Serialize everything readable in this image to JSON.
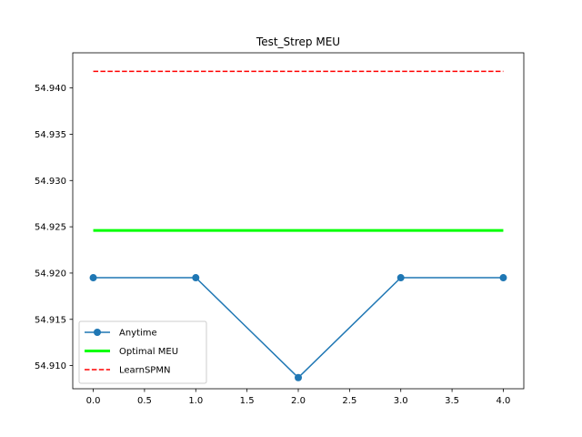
{
  "chart_data": {
    "type": "line",
    "title": "Test_Strep MEU",
    "xlabel": "",
    "ylabel": "",
    "xlim": [
      -0.2,
      4.2
    ],
    "ylim": [
      54.9075,
      54.9438
    ],
    "x_ticks": [
      0.0,
      0.5,
      1.0,
      1.5,
      2.0,
      2.5,
      3.0,
      3.5,
      4.0
    ],
    "x_tick_labels": [
      "0.0",
      "0.5",
      "1.0",
      "1.5",
      "2.0",
      "2.5",
      "3.0",
      "3.5",
      "4.0"
    ],
    "y_ticks": [
      54.91,
      54.915,
      54.92,
      54.925,
      54.93,
      54.935,
      54.94
    ],
    "y_tick_labels": [
      "54.910",
      "54.915",
      "54.920",
      "54.925",
      "54.930",
      "54.935",
      "54.940"
    ],
    "grid": false,
    "legend_position": "lower-left",
    "series": [
      {
        "name": "Anytime",
        "style": "line-marker",
        "color": "#1f77b4",
        "x": [
          0,
          1,
          2,
          3,
          4
        ],
        "y": [
          54.9195,
          54.9195,
          54.9087,
          54.9195,
          54.9195
        ]
      },
      {
        "name": "Optimal MEU",
        "style": "solid-thick",
        "color": "#00ff00",
        "x": [
          0,
          4
        ],
        "y": [
          54.9246,
          54.9246
        ]
      },
      {
        "name": "LearnSPMN",
        "style": "dashed",
        "color": "#ff0000",
        "x": [
          0,
          4
        ],
        "y": [
          54.9418,
          54.9418
        ]
      }
    ]
  }
}
